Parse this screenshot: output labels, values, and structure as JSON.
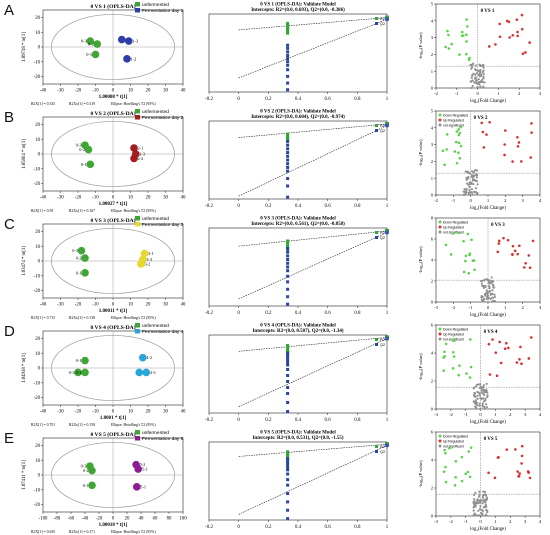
{
  "colors": {
    "unfermented": "#3fa535",
    "ellipse": "#9a9a9a",
    "r2": "#35a535",
    "q2": "#2746a4",
    "q2_dot": "#3a55b8",
    "up": "#d93030",
    "down": "#5ad24a",
    "ns": "#909090"
  },
  "rows": [
    {
      "letter": "A",
      "fermentation_color": "#2c3fa8",
      "opls": {
        "title": "0 VS 1 (OPLS-DA)",
        "ylabel": "1.09718 * to[1]",
        "xlabel": "1.00008 * t[1]",
        "legend": [
          "unfermented",
          "Fermentation day 1"
        ],
        "stats": [
          "R2X[1] = 0.335",
          "R2Xo[1] = 0.319",
          "Ellipse: Hotelling's T2 (95%)"
        ],
        "xticks": [
          "-40",
          "-30",
          "-20",
          "-10",
          "0",
          "10",
          "20",
          "30",
          "40"
        ],
        "yticks": [
          "20",
          "10",
          "0",
          "-10",
          "-20"
        ],
        "points": [
          {
            "label": "0-3",
            "group": 0,
            "x": -13,
            "y": 4
          },
          {
            "label": "0-2",
            "group": 0,
            "x": -9,
            "y": 2
          },
          {
            "label": "0-1",
            "group": 0,
            "x": -10,
            "y": -5
          },
          {
            "label": "1-1",
            "group": 1,
            "x": 5,
            "y": 5
          },
          {
            "label": "1-3",
            "group": 1,
            "x": 9,
            "y": 4
          },
          {
            "label": "1-2",
            "group": 1,
            "x": 8,
            "y": -8
          }
        ]
      },
      "validate": {
        "title": "0 VS 1 (OPLS-DA): Validate Model",
        "subtitle": "Intercepts: R2=(0.0, 0.693), Q2=(0.0, -0.386)",
        "r2_intercept": 0.693,
        "q2_intercept": -0.386,
        "r2_scatter": [
          0.62,
          0.66,
          0.7,
          0.73,
          0.77,
          0.8,
          0.84
        ],
        "q2_scatter": [
          0.35,
          0.28,
          0.2,
          0.12,
          0.05,
          -0.02,
          -0.1,
          -0.2,
          -0.35,
          -0.5,
          -0.65
        ]
      },
      "volcano": {
        "label": "0 VS 1",
        "legend": [],
        "ymax": 5,
        "ylabel": "-log₁₀(P value)",
        "xlabel": "log₂(Fold Change)",
        "xticks": [
          "-2",
          "-1",
          "0",
          "1",
          "2",
          "3"
        ],
        "yticks": [
          "0",
          "1",
          "2",
          "3",
          "4",
          "5"
        ]
      }
    },
    {
      "letter": "B",
      "fermentation_color": "#a31d1d",
      "opls": {
        "title": "0 VS 2 (OPLS-DA)",
        "ylabel": "1.05864 * to[1]",
        "xlabel": "1.00027 * t[1]",
        "legend": [
          "unfermented",
          "Fermentation day 2"
        ],
        "stats": [
          "R2X[1] = 0.59",
          "R2Xo[1] = 0.167",
          "Ellipse: Hotelling's T2 (95%)"
        ],
        "xticks": [
          "-40",
          "-30",
          "-20",
          "-10",
          "0",
          "10",
          "20",
          "30",
          "40"
        ],
        "yticks": [
          "20",
          "10",
          "0",
          "-10",
          "-20"
        ],
        "points": [
          {
            "label": "0-3",
            "group": 0,
            "x": -16,
            "y": 6
          },
          {
            "label": "0-2",
            "group": 0,
            "x": -14,
            "y": 3
          },
          {
            "label": "0-1",
            "group": 0,
            "x": -13,
            "y": -7
          },
          {
            "label": "2-1",
            "group": 1,
            "x": 12,
            "y": 4
          },
          {
            "label": "2-3",
            "group": 1,
            "x": 13,
            "y": 0
          },
          {
            "label": "2-2",
            "group": 1,
            "x": 12,
            "y": -3
          }
        ]
      },
      "validate": {
        "title": "0 VS 2 (OPLS-DA): Validate Model",
        "subtitle": "Intercepts: R2=(0.0, 0.604), Q2=(0.0, -0.974)",
        "r2_intercept": 0.604,
        "q2_intercept": -0.974,
        "r2_scatter": [
          0.55,
          0.58,
          0.62,
          0.66,
          0.7
        ],
        "q2_scatter": [
          0.5,
          0.4,
          0.3,
          0.2,
          0.1,
          0.0,
          -0.1,
          -0.2,
          -0.3,
          -0.5,
          -0.7,
          -1.0
        ]
      },
      "volcano": {
        "label": "0 VS 2",
        "legend": [
          "Down Regulated",
          "Up Regulated",
          "not significant"
        ],
        "ymax": 5,
        "ylabel": "-log₁₀(P value)",
        "xlabel": "log₂(Fold Change)",
        "xticks": [
          "-2",
          "-1",
          "0",
          "1",
          "2",
          "3",
          "4"
        ],
        "yticks": [
          "0",
          "1",
          "2",
          "3",
          "4",
          "5"
        ]
      }
    },
    {
      "letter": "C",
      "fermentation_color": "#e8d82c",
      "opls": {
        "title": "0 VS 3 (OPLS-DA)",
        "ylabel": "1.03474 * to[1]",
        "xlabel": "1.00011 * t[1]",
        "legend": [
          "unfermented",
          "Fermentation day 3"
        ],
        "stats": [
          "R2X[1] = 0.715",
          "R2Xo[1] = 0.138",
          "Ellipse: Hotelling's T2 (95%)"
        ],
        "xticks": [
          "-40",
          "-30",
          "-20",
          "-10",
          "0",
          "10",
          "20",
          "30",
          "40"
        ],
        "yticks": [
          "20",
          "10",
          "0",
          "-10",
          "-20"
        ],
        "points": [
          {
            "label": "0-3",
            "group": 0,
            "x": -18,
            "y": 7
          },
          {
            "label": "0-2",
            "group": 0,
            "x": -16,
            "y": 2
          },
          {
            "label": "0-1",
            "group": 0,
            "x": -16,
            "y": -8
          },
          {
            "label": "3-1",
            "group": 1,
            "x": 18,
            "y": 5
          },
          {
            "label": "3-3",
            "group": 1,
            "x": 17,
            "y": 1
          },
          {
            "label": "3-2",
            "group": 1,
            "x": 16,
            "y": -2
          }
        ]
      },
      "validate": {
        "title": "0 VS 3 (OPLS-DA): Validate Model",
        "subtitle": "Intercepts: R2=(0.0, 0.561), Q2=(0.0, -0.858)",
        "r2_intercept": 0.561,
        "q2_intercept": -0.858,
        "r2_scatter": [
          0.45,
          0.5,
          0.55,
          0.6,
          0.65,
          0.7
        ],
        "q2_scatter": [
          0.5,
          0.4,
          0.3,
          0.2,
          0.1,
          0.0,
          -0.1,
          -0.25,
          -0.4,
          -0.6,
          -0.8,
          -1.0
        ]
      },
      "volcano": {
        "label": "0 VS 3",
        "legend": [
          "Down Regulated",
          "Up Regulated",
          "not significant"
        ],
        "ymax": 8,
        "ylabel": "-log₁₀(P value)",
        "xlabel": "log₂(Fold Change)",
        "xticks": [
          "-3",
          "-2",
          "-1",
          "0",
          "1",
          "2",
          "3"
        ],
        "yticks": [
          "0",
          "2",
          "4",
          "6",
          "8"
        ]
      }
    },
    {
      "letter": "D",
      "fermentation_color": "#2aa5dc",
      "opls": {
        "title": "0 VS 4 (OPLS-DA)",
        "ylabel": "1.04918 * to[1]",
        "xlabel": "1.0001 * t[1]",
        "legend": [
          "unfermented",
          "Fermentation day 4"
        ],
        "stats": [
          "R2X[1] = 0.701",
          "R2Xo[1] = 0.158",
          "Ellipse: Hotelling's T2 (95%)"
        ],
        "xticks": [
          "-40",
          "-30",
          "-20",
          "-10",
          "0",
          "10",
          "20",
          "30",
          "40"
        ],
        "yticks": [
          "20",
          "10",
          "0",
          "-10",
          "-20"
        ],
        "points": [
          {
            "label": "0-1",
            "group": 0,
            "x": -16,
            "y": 5
          },
          {
            "label": "0-3",
            "group": 0,
            "x": -20,
            "y": -3
          },
          {
            "label": "0-2",
            "group": 0,
            "x": -16,
            "y": -3
          },
          {
            "label": "4-2",
            "group": 1,
            "x": 17,
            "y": 7
          },
          {
            "label": "4-1",
            "group": 1,
            "x": 15,
            "y": -3
          },
          {
            "label": "4-3",
            "group": 1,
            "x": 19,
            "y": -3
          }
        ]
      },
      "validate": {
        "title": "0 VS 4 (OPLS-DA): Validate Model",
        "subtitle": "Intercepts: R2=(0.0, 0.507), Q2=(0.0, -1.34)",
        "r2_intercept": 0.507,
        "q2_intercept": -1.34,
        "r2_scatter": [
          0.45,
          0.5,
          0.55,
          0.6,
          0.65,
          0.7
        ],
        "q2_scatter": [
          0.45,
          0.35,
          0.25,
          0.15,
          0.05,
          -0.1,
          -0.3,
          -0.5,
          -0.7,
          -0.9,
          -1.2,
          -1.5
        ]
      },
      "volcano": {
        "label": "0 VS 4",
        "legend": [
          "Down Regulated",
          "Up Regulated",
          "not significant"
        ],
        "ymax": 6,
        "ylabel": "-log₁₀(P value)",
        "xlabel": "log₂(Fold Change)",
        "xticks": [
          "-3",
          "-2",
          "-1",
          "0",
          "1",
          "2",
          "3",
          "4"
        ],
        "yticks": [
          "0",
          "2",
          "4",
          "6"
        ]
      }
    },
    {
      "letter": "E",
      "fermentation_color": "#8a1c96",
      "opls": {
        "title": "0 VS 5 (OPLS-DA)",
        "ylabel": "1.07411 * to[1]",
        "xlabel": "1.00018 * t[1]",
        "legend": [
          "unfermented",
          "Fermentation day 5"
        ],
        "stats": [
          "R2X[1] = 0.635",
          "R2Xo[1] = 0.271",
          "Ellipse: Hotelling's T2 (95%)"
        ],
        "xticks": [
          "-100",
          "-80",
          "-60",
          "-40",
          "-20",
          "0",
          "20",
          "40",
          "60",
          "80",
          "100"
        ],
        "yticks": [
          "20",
          "10",
          "0",
          "-10",
          "-20"
        ],
        "points": [
          {
            "label": "0-3",
            "group": 0,
            "x": -33,
            "y": 6
          },
          {
            "label": "0-2",
            "group": 0,
            "x": -30,
            "y": 3
          },
          {
            "label": "0-1",
            "group": 0,
            "x": -30,
            "y": -7
          },
          {
            "label": "5-2",
            "group": 1,
            "x": 33,
            "y": 7
          },
          {
            "label": "5-3",
            "group": 1,
            "x": 36,
            "y": 4
          },
          {
            "label": "5-1",
            "group": 1,
            "x": 34,
            "y": -8
          }
        ]
      },
      "validate": {
        "title": "0 VS 5 (OPLS-DA): Validate Model",
        "subtitle": "Intercepts: R2=(0.0, 0.531), Q2=(0.0, -1.55)",
        "r2_intercept": 0.531,
        "q2_intercept": -1.55,
        "r2_scatter": [
          0.45,
          0.5,
          0.55,
          0.6,
          0.65,
          0.7
        ],
        "q2_scatter": [
          0.45,
          0.35,
          0.25,
          0.15,
          0.05,
          -0.1,
          -0.3,
          -0.5,
          -0.8,
          -1.1,
          -1.4,
          -1.7
        ]
      },
      "volcano": {
        "label": "0 VS 5",
        "legend": [
          "Down Regulated",
          "Up Regulated",
          "not significant"
        ],
        "ymax": 6,
        "ylabel": "-log₁₀(P value)",
        "xlabel": "log₂(Fold Change)",
        "xticks": [
          "-3",
          "-2",
          "-1",
          "0",
          "1",
          "2",
          "3",
          "4"
        ],
        "yticks": [
          "0",
          "2",
          "4",
          "6"
        ]
      }
    }
  ],
  "validate_xticks": [
    "-0.2",
    "0",
    "0.2",
    "0.4",
    "0.6",
    "0.8",
    "1"
  ],
  "validate_legend": [
    "R2",
    "Q2"
  ],
  "chart_data": [
    {
      "type": "scatter",
      "title": "0 VS 1 (OPLS-DA)",
      "xlabel": "1.00008 * t[1]",
      "ylabel": "1.09718 * to[1]",
      "series": [
        {
          "name": "unfermented",
          "points": [
            [
              -13,
              4
            ],
            [
              -9,
              2
            ],
            [
              -10,
              -5
            ]
          ]
        },
        {
          "name": "Fermentation day 1",
          "points": [
            [
              5,
              5
            ],
            [
              9,
              4
            ],
            [
              8,
              -8
            ]
          ]
        }
      ]
    },
    {
      "type": "scatter",
      "title": "0 VS 2 (OPLS-DA)",
      "xlabel": "1.00027 * t[1]",
      "ylabel": "1.05864 * to[1]",
      "series": [
        {
          "name": "unfermented",
          "points": [
            [
              -16,
              6
            ],
            [
              -14,
              3
            ],
            [
              -13,
              -7
            ]
          ]
        },
        {
          "name": "Fermentation day 2",
          "points": [
            [
              12,
              4
            ],
            [
              13,
              0
            ],
            [
              12,
              -3
            ]
          ]
        }
      ]
    },
    {
      "type": "scatter",
      "title": "0 VS 3 (OPLS-DA)",
      "xlabel": "1.00011 * t[1]",
      "ylabel": "1.03474 * to[1]",
      "series": [
        {
          "name": "unfermented",
          "points": [
            [
              -18,
              7
            ],
            [
              -16,
              2
            ],
            [
              -16,
              -8
            ]
          ]
        },
        {
          "name": "Fermentation day 3",
          "points": [
            [
              18,
              5
            ],
            [
              17,
              1
            ],
            [
              16,
              -2
            ]
          ]
        }
      ]
    },
    {
      "type": "scatter",
      "title": "0 VS 4 (OPLS-DA)",
      "xlabel": "1.0001 * t[1]",
      "ylabel": "1.04918 * to[1]",
      "series": [
        {
          "name": "unfermented",
          "points": [
            [
              -16,
              5
            ],
            [
              -20,
              -3
            ],
            [
              -16,
              -3
            ]
          ]
        },
        {
          "name": "Fermentation day 4",
          "points": [
            [
              17,
              7
            ],
            [
              15,
              -3
            ],
            [
              19,
              -3
            ]
          ]
        }
      ]
    },
    {
      "type": "scatter",
      "title": "0 VS 5 (OPLS-DA)",
      "xlabel": "1.00018 * t[1]",
      "ylabel": "1.07411 * to[1]",
      "series": [
        {
          "name": "unfermented",
          "points": [
            [
              -33,
              6
            ],
            [
              -30,
              3
            ],
            [
              -30,
              -7
            ]
          ]
        },
        {
          "name": "Fermentation day 5",
          "points": [
            [
              33,
              7
            ],
            [
              36,
              4
            ],
            [
              34,
              -8
            ]
          ]
        }
      ]
    }
  ]
}
